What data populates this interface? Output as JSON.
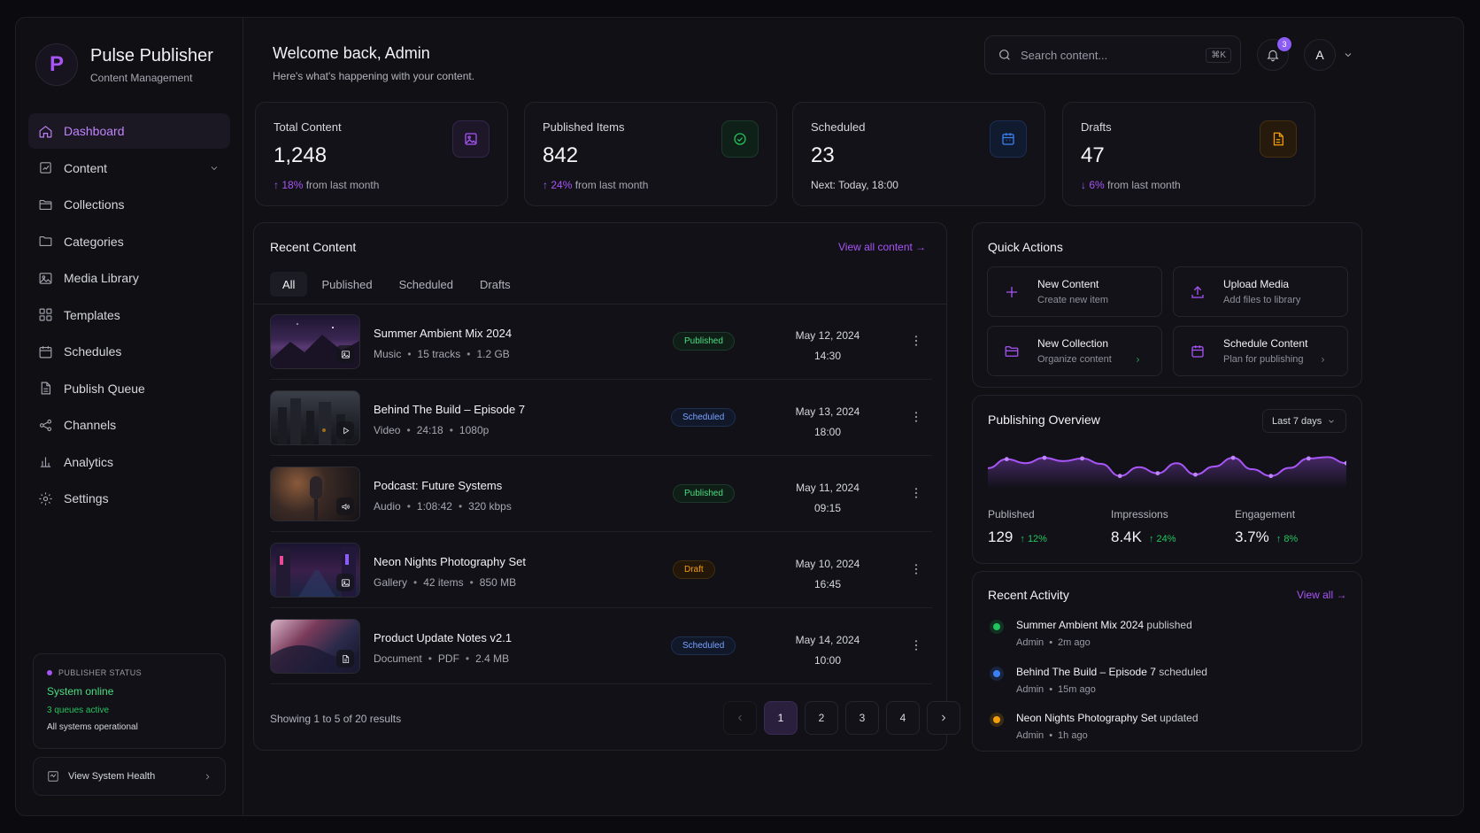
{
  "brand": {
    "logo_letter": "P",
    "title": "Pulse Publisher",
    "subtitle": "Content Management"
  },
  "nav": [
    {
      "label": "Dashboard",
      "icon": "home-icon",
      "active": true
    },
    {
      "label": "Content",
      "icon": "edit-icon",
      "expandable": true
    },
    {
      "label": "Collections",
      "icon": "folder-icon"
    },
    {
      "label": "Categories",
      "icon": "folder-icon"
    },
    {
      "label": "Media Library",
      "icon": "image-icon"
    },
    {
      "label": "Templates",
      "icon": "grid-icon"
    },
    {
      "label": "Schedules",
      "icon": "calendar-icon"
    },
    {
      "label": "Publish Queue",
      "icon": "document-icon"
    },
    {
      "label": "Channels",
      "icon": "share-icon"
    },
    {
      "label": "Analytics",
      "icon": "bar-chart-icon"
    },
    {
      "label": "Settings",
      "icon": "gear-icon"
    }
  ],
  "status": {
    "heading": "PUBLISHER STATUS",
    "state": "System online",
    "queues": "3 queues active",
    "ops": "All systems operational",
    "health_button": "View System Health"
  },
  "header": {
    "welcome": "Welcome back, Admin",
    "subtitle": "Here's what's happening with your content.",
    "search_placeholder": "Search content...",
    "search_shortcut": "⌘K",
    "notification_count": "3",
    "avatar_letter": "A"
  },
  "stats": [
    {
      "label": "Total Content",
      "value": "1,248",
      "delta": "18%",
      "delta_text": "from last month",
      "direction": "up",
      "icon": "image-icon",
      "accent": "#a855f7"
    },
    {
      "label": "Published Items",
      "value": "842",
      "delta": "24%",
      "delta_text": "from last month",
      "direction": "up",
      "icon": "check-circle-icon",
      "accent": "#22c55e"
    },
    {
      "label": "Scheduled",
      "value": "23",
      "footer": "Next: Today, 18:00",
      "icon": "calendar-icon",
      "accent": "#3b82f6"
    },
    {
      "label": "Drafts",
      "value": "47",
      "delta": "6%",
      "delta_text": "from last month",
      "direction": "down",
      "icon": "document-icon",
      "accent": "#f59e0b"
    }
  ],
  "recent": {
    "title": "Recent Content",
    "view_all": "View all content",
    "tabs": [
      "All",
      "Published",
      "Scheduled",
      "Drafts"
    ],
    "active_tab": 0,
    "rows": [
      {
        "title": "Summer Ambient Mix 2024",
        "meta": [
          "Music",
          "15 tracks",
          "1.2 GB"
        ],
        "status": "Published",
        "status_class": "published",
        "date": "May 12, 2024",
        "time": "14:30",
        "thumb_icon": "image-icon"
      },
      {
        "title": "Behind The Build – Episode 7",
        "meta": [
          "Video",
          "24:18",
          "1080p"
        ],
        "status": "Scheduled",
        "status_class": "scheduled",
        "date": "May 13, 2024",
        "time": "18:00",
        "thumb_icon": "play-icon"
      },
      {
        "title": "Podcast: Future Systems",
        "meta": [
          "Audio",
          "1:08:42",
          "320 kbps"
        ],
        "status": "Published",
        "status_class": "published",
        "date": "May 11, 2024",
        "time": "09:15",
        "thumb_icon": "audio-icon"
      },
      {
        "title": "Neon Nights Photography Set",
        "meta": [
          "Gallery",
          "42 items",
          "850 MB"
        ],
        "status": "Draft",
        "status_class": "draft",
        "date": "May 10, 2024",
        "time": "16:45",
        "thumb_icon": "image-icon"
      },
      {
        "title": "Product Update Notes v2.1",
        "meta": [
          "Document",
          "PDF",
          "2.4 MB"
        ],
        "status": "Scheduled",
        "status_class": "scheduled",
        "date": "May 14, 2024",
        "time": "10:00",
        "thumb_icon": "document-icon"
      }
    ],
    "showing": "Showing 1 to 5 of 20 results",
    "pages": [
      "1",
      "2",
      "3",
      "4"
    ],
    "current_page": 0
  },
  "quick_actions": {
    "title": "Quick Actions",
    "items": [
      {
        "title": "New Content",
        "sub": "Create new item",
        "icon": "plus-icon"
      },
      {
        "title": "Upload Media",
        "sub": "Add files to library",
        "icon": "upload-icon"
      },
      {
        "title": "New Collection",
        "sub": "Organize content",
        "icon": "folder-icon"
      },
      {
        "title": "Schedule Content",
        "sub": "Plan for publishing",
        "icon": "calendar-icon"
      }
    ]
  },
  "overview": {
    "title": "Publishing Overview",
    "range": "Last 7 days",
    "trend": [
      0.45,
      0.72,
      0.6,
      0.76,
      0.66,
      0.74,
      0.58,
      0.22,
      0.48,
      0.3,
      0.6,
      0.26,
      0.5,
      0.76,
      0.42,
      0.22,
      0.46,
      0.74,
      0.78,
      0.6
    ],
    "metrics": [
      {
        "label": "Published",
        "value": "129",
        "delta": "12%"
      },
      {
        "label": "Impressions",
        "value": "8.4K",
        "delta": "24%"
      },
      {
        "label": "Engagement",
        "value": "3.7%",
        "delta": "8%"
      }
    ]
  },
  "activity": {
    "title": "Recent Activity",
    "view_all": "View all",
    "items": [
      {
        "subject": "Summer Ambient Mix 2024",
        "verb": "published",
        "user": "Admin",
        "time": "2m ago",
        "color": "#22c55e"
      },
      {
        "subject": "Behind The Build – Episode 7",
        "verb": "scheduled",
        "user": "Admin",
        "time": "15m ago",
        "color": "#3b82f6"
      },
      {
        "subject": "Neon Nights Photography Set",
        "verb": "updated",
        "user": "Admin",
        "time": "1h ago",
        "color": "#f59e0b"
      }
    ]
  },
  "colors": {
    "accent": "#a855f7",
    "success": "#22c55e",
    "info": "#3b82f6",
    "warning": "#f59e0b",
    "background": "#101015"
  }
}
